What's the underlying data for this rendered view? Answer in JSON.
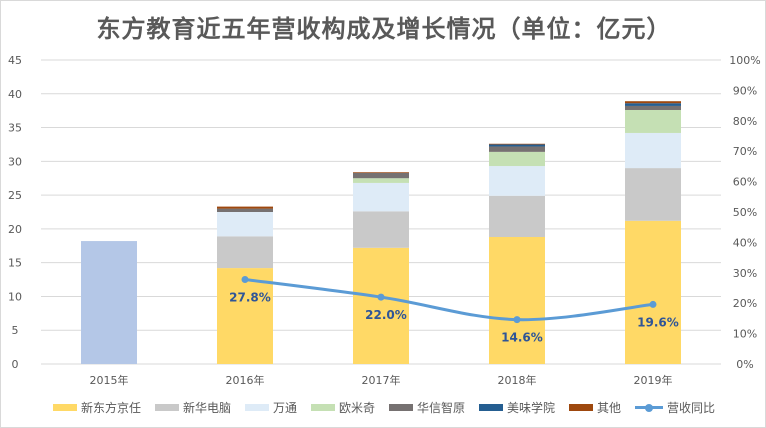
{
  "chart_data": {
    "type": "bar",
    "title": "东方教育近五年营收构成及增长情况（单位：亿元）",
    "categories": [
      "2015年",
      "2016年",
      "2017年",
      "2018年",
      "2019年"
    ],
    "y_left": {
      "range": [
        0,
        45
      ],
      "ticks": [
        "0",
        "5",
        "10",
        "15",
        "20",
        "25",
        "30",
        "35",
        "40",
        "45"
      ]
    },
    "y_right": {
      "range": [
        0,
        100
      ],
      "ticks": [
        "0%",
        "10%",
        "20%",
        "30%",
        "40%",
        "50%",
        "60%",
        "70%",
        "80%",
        "90%",
        "100%"
      ]
    },
    "grid": true,
    "legend_position": "bottom",
    "total_2015": {
      "value": 18.2,
      "color": "#b4c7e7"
    },
    "series": [
      {
        "name": "新东方京任",
        "color": "#ffd966",
        "values": [
          null,
          14.2,
          17.2,
          18.8,
          21.2
        ]
      },
      {
        "name": "新华电脑",
        "color": "#c9c9c9",
        "values": [
          null,
          4.7,
          5.4,
          6.1,
          7.8
        ]
      },
      {
        "name": "万通",
        "color": "#deebf7",
        "values": [
          null,
          3.6,
          4.2,
          4.4,
          5.2
        ]
      },
      {
        "name": "欧米奇",
        "color": "#c5e0b4",
        "values": [
          null,
          0,
          0.7,
          2.1,
          3.4
        ]
      },
      {
        "name": "华信智原",
        "color": "#767171",
        "values": [
          null,
          0.5,
          0.8,
          0.8,
          0.6
        ]
      },
      {
        "name": "美味学院",
        "color": "#255e91",
        "values": [
          null,
          0,
          0,
          0.3,
          0.4
        ]
      },
      {
        "name": "其他",
        "color": "#9e480e",
        "values": [
          null,
          0.3,
          0.1,
          0.1,
          0.3
        ]
      }
    ],
    "line": {
      "name": "营收同比",
      "color": "#5b9bd5",
      "axis": "right",
      "values": [
        null,
        27.8,
        22.0,
        14.6,
        19.6
      ],
      "labels": [
        null,
        "27.8%",
        "22.0%",
        "14.6%",
        "19.6%"
      ]
    }
  }
}
